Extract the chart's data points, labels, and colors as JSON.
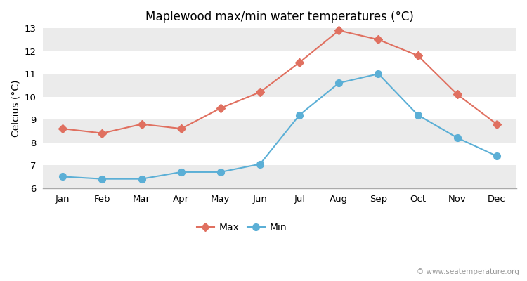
{
  "title": "Maplewood max/min water temperatures (°C)",
  "ylabel": "Celcius (°C)",
  "months": [
    "Jan",
    "Feb",
    "Mar",
    "Apr",
    "May",
    "Jun",
    "Jul",
    "Aug",
    "Sep",
    "Oct",
    "Nov",
    "Dec"
  ],
  "max_values": [
    8.6,
    8.4,
    8.8,
    8.6,
    9.5,
    10.2,
    11.5,
    12.9,
    12.5,
    11.8,
    10.1,
    8.8
  ],
  "min_values": [
    6.5,
    6.4,
    6.4,
    6.7,
    6.7,
    7.05,
    9.2,
    10.6,
    11.0,
    9.2,
    8.2,
    7.4
  ],
  "max_color": "#E07060",
  "min_color": "#5BAFD6",
  "fig_bg_color": "#FFFFFF",
  "plot_bg_color": "#FFFFFF",
  "band_light": "#EBEBEB",
  "band_dark": "#FFFFFF",
  "ylim": [
    6,
    13
  ],
  "yticks": [
    6,
    7,
    8,
    9,
    10,
    11,
    12,
    13
  ],
  "max_marker": "D",
  "min_marker": "o",
  "max_marker_size": 6,
  "min_marker_size": 7,
  "legend_labels": [
    "Max",
    "Min"
  ],
  "watermark": "© www.seatemperature.org",
  "title_fontsize": 12,
  "label_fontsize": 10,
  "tick_fontsize": 9.5
}
